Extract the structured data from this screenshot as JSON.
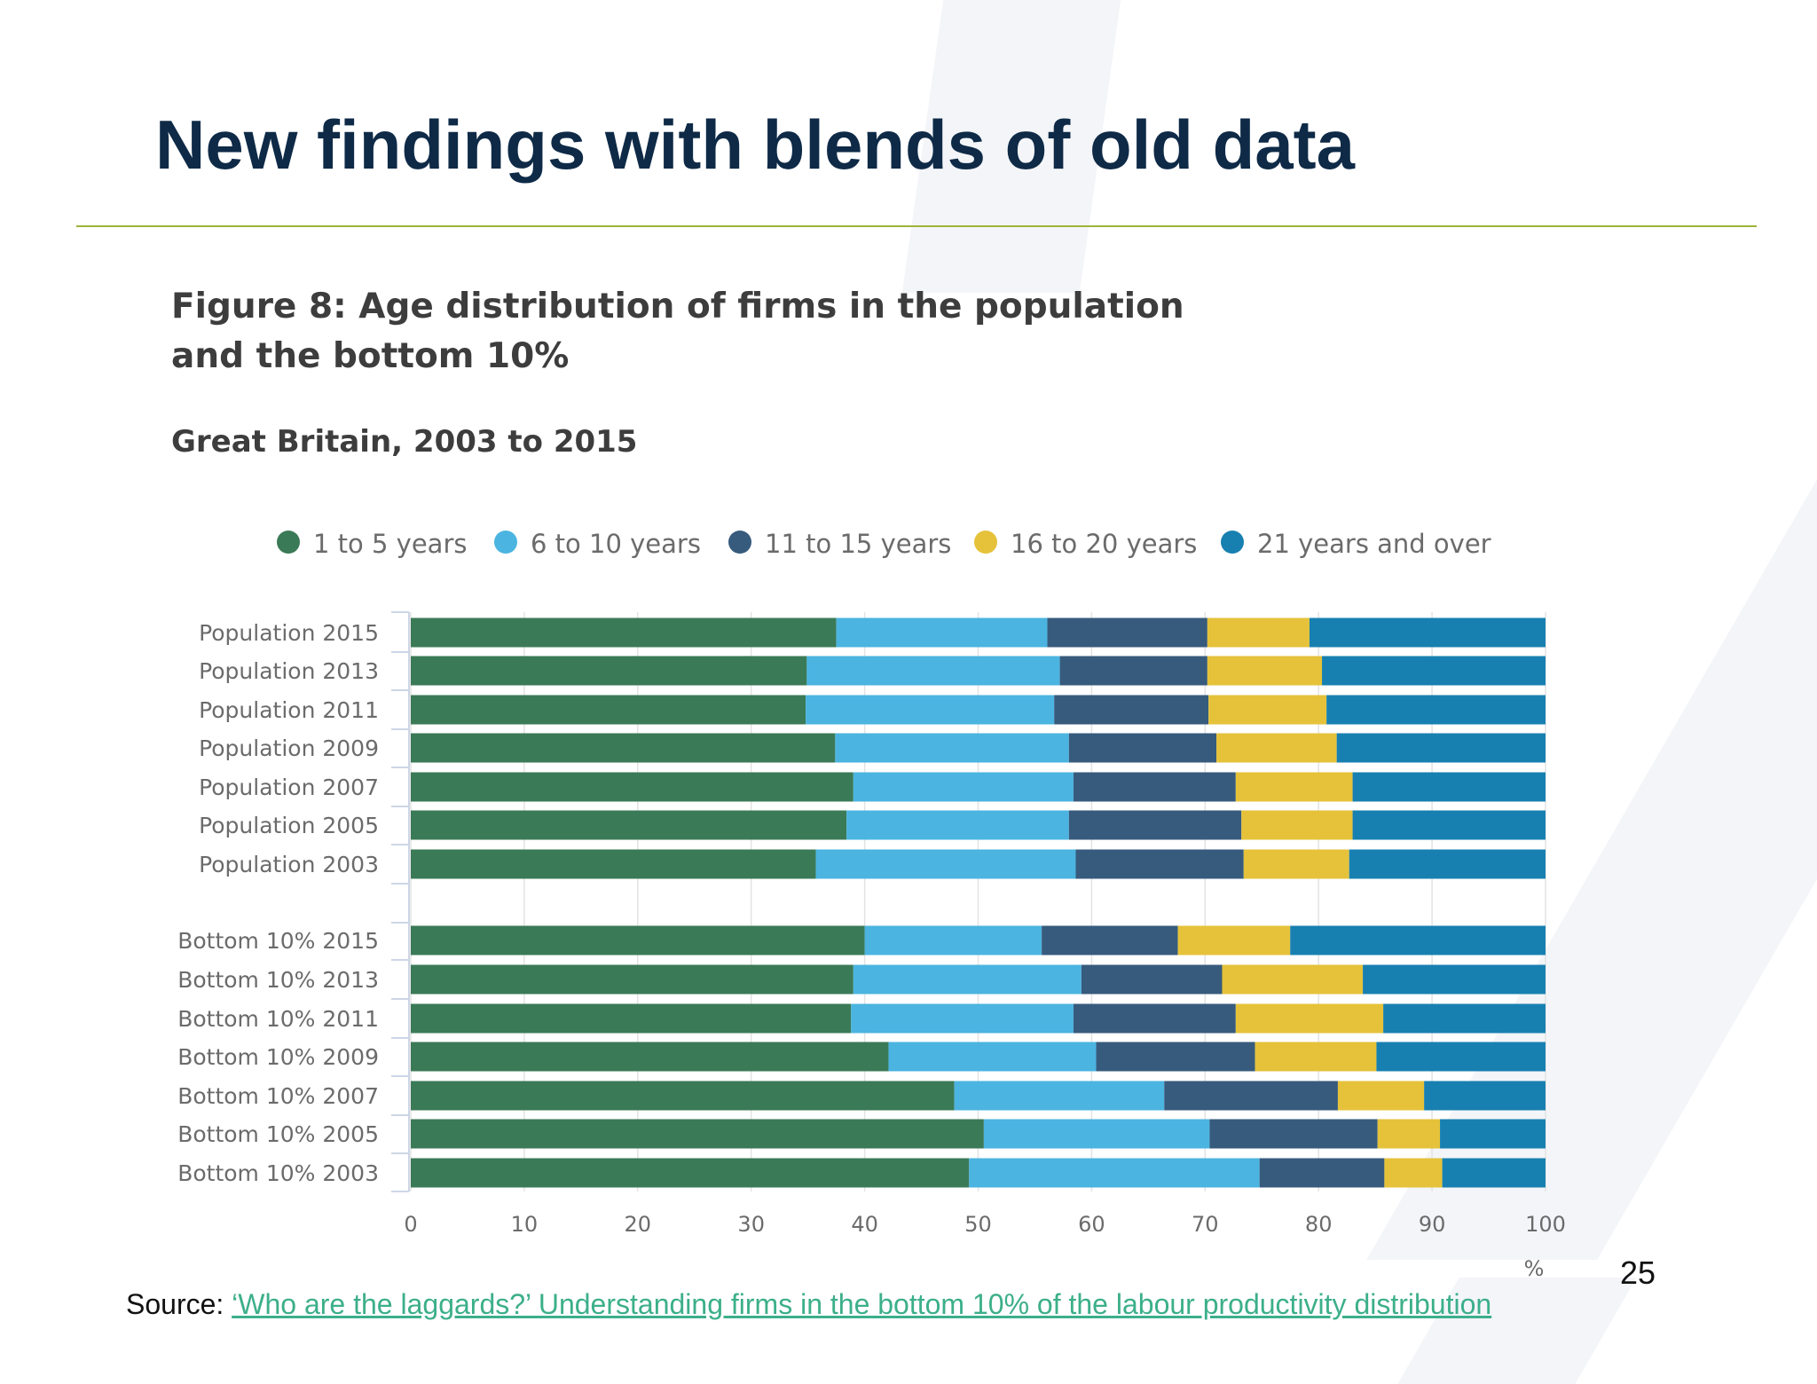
{
  "slide": {
    "title": "New findings with blends of old data",
    "page_number": "25",
    "source_prefix": "Source: ",
    "source_link_text": "‘Who are the laggards?’ Understanding firms in the bottom 10% of the labour productivity distribution"
  },
  "chart_data": {
    "type": "bar",
    "orientation": "horizontal",
    "stacked": true,
    "title": "Figure 8: Age distribution of firms in the population and the bottom 10%",
    "subtitle": "Great Britain, 2003 to 2015",
    "xlabel": "%",
    "xlim": [
      0,
      100
    ],
    "xticks": [
      0,
      10,
      20,
      30,
      40,
      50,
      60,
      70,
      80,
      90,
      100
    ],
    "grid": true,
    "legend_position": "top",
    "categories": [
      "Population 2015",
      "Population 2013",
      "Population 2011",
      "Population 2009",
      "Population 2007",
      "Population 2005",
      "Population 2003",
      "Bottom 10% 2015",
      "Bottom 10% 2013",
      "Bottom 10% 2011",
      "Bottom 10% 2009",
      "Bottom 10% 2007",
      "Bottom 10% 2005",
      "Bottom 10% 2003"
    ],
    "series": [
      {
        "name": "1 to 5 years",
        "color": "#3b7a57",
        "values": [
          37.5,
          34.9,
          34.8,
          37.4,
          39.0,
          38.4,
          35.7,
          40.0,
          39.0,
          38.8,
          42.1,
          47.9,
          50.5,
          49.2
        ]
      },
      {
        "name": "6 to 10 years",
        "color": "#4bb4e0",
        "values": [
          18.6,
          22.3,
          21.9,
          20.6,
          19.4,
          19.6,
          22.9,
          15.6,
          20.1,
          19.6,
          18.3,
          18.5,
          19.9,
          25.6
        ]
      },
      {
        "name": "11 to 15 years",
        "color": "#375b7d",
        "values": [
          14.1,
          13.0,
          13.6,
          13.0,
          14.3,
          15.2,
          14.8,
          12.0,
          12.4,
          14.3,
          14.0,
          15.3,
          14.8,
          11.0
        ]
      },
      {
        "name": "16 to 20 years",
        "color": "#e5c23a",
        "values": [
          9.0,
          10.1,
          10.4,
          10.6,
          10.3,
          9.8,
          9.3,
          9.9,
          12.4,
          13.0,
          10.7,
          7.6,
          5.5,
          5.1
        ]
      },
      {
        "name": "21 years and over",
        "color": "#1880b0",
        "values": [
          20.8,
          19.7,
          19.3,
          18.4,
          17.0,
          17.0,
          17.3,
          22.5,
          16.1,
          14.3,
          14.9,
          10.7,
          9.3,
          9.1
        ]
      }
    ]
  }
}
